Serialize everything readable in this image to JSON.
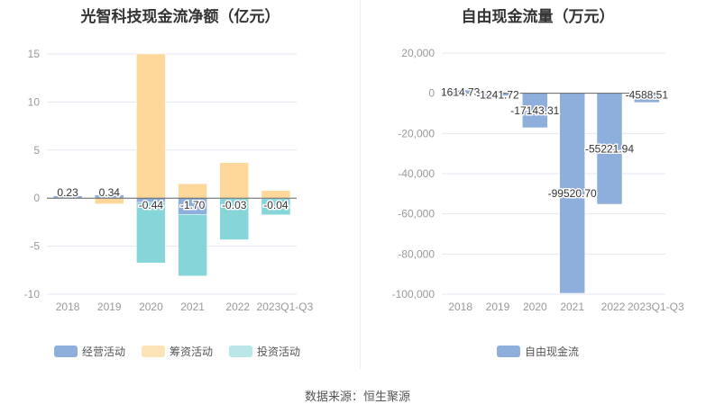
{
  "chart_data": [
    {
      "type": "bar",
      "stacked": true,
      "title": "光智科技现金流净额（亿元）",
      "categories": [
        "2018",
        "2019",
        "2020",
        "2021",
        "2022",
        "2023Q1-Q3"
      ],
      "ylim": [
        -10,
        15
      ],
      "yticks": [
        15,
        10,
        5,
        0,
        -5,
        -10
      ],
      "series": [
        {
          "name": "经营活动",
          "color": "#8eaedb",
          "values": [
            0.23,
            0.34,
            -0.44,
            -1.7,
            -0.03,
            -0.04
          ],
          "labels": [
            "0.23",
            "0.34",
            "-0.44",
            "-1.70",
            "-0.03",
            "-0.04"
          ]
        },
        {
          "name": "筹资活动",
          "color": "#fdd89a",
          "values": [
            0.0,
            -0.6,
            15.0,
            1.5,
            3.7,
            0.8
          ]
        },
        {
          "name": "投资活动",
          "color": "#86d6d9",
          "values": [
            0.0,
            0.0,
            -6.3,
            -6.4,
            -4.3,
            -1.7
          ]
        }
      ],
      "legend": "bottom"
    },
    {
      "type": "bar",
      "title": "自由现金流量（万元）",
      "categories": [
        "2018",
        "2019",
        "2020",
        "2021",
        "2022",
        "2023Q1-Q3"
      ],
      "ylim": [
        -100000,
        20000
      ],
      "yticks": [
        "20,000",
        "0",
        "-20,000",
        "-40,000",
        "-60,000",
        "-80,000",
        "-100,000"
      ],
      "ytick_values": [
        20000,
        0,
        -20000,
        -40000,
        -60000,
        -80000,
        -100000
      ],
      "series": [
        {
          "name": "自由现金流",
          "color": "#8eaedb",
          "values": [
            1614.73,
            -1241.72,
            -17143.31,
            -99520.7,
            -55221.94,
            -4588.51
          ],
          "labels": [
            "1614.73",
            "-1241.72",
            "-17143.31",
            "-99520.70",
            "-55221.94",
            "-4588.51"
          ]
        }
      ],
      "legend": "bottom"
    }
  ],
  "source": "数据来源：恒生聚源"
}
